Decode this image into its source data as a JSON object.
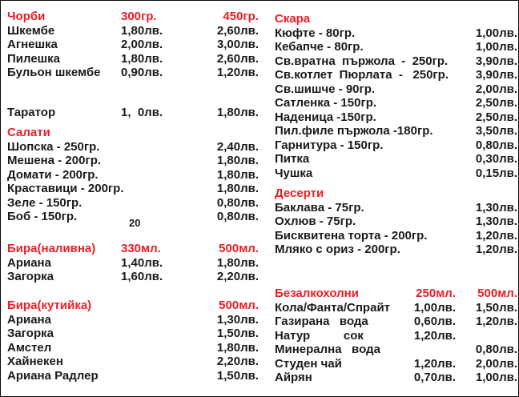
{
  "colors": {
    "accent": "#ee1c25",
    "text": "#1a1a1a",
    "background": "#ffffff"
  },
  "currency_suffix": "лв.",
  "menu": {
    "left": {
      "chorbi": {
        "title": "Чорби",
        "col1": "300гр.",
        "col2": "450гр.",
        "items": [
          {
            "name": "Шкембе",
            "p1": "1,80лв.",
            "p2": "2,60лв."
          },
          {
            "name": "Агнешка",
            "p1": "2,00лв.",
            "p2": "3,00лв."
          },
          {
            "name": "Пилешка",
            "p1": "1,80лв.",
            "p2": "2,60лв."
          },
          {
            "name": "Бульон шкембе",
            "p1": "0,90лв.",
            "p2": "1,20лв."
          }
        ]
      },
      "tarator": {
        "items": [
          {
            "name": "Таратор",
            "p1": "1,  0лв.",
            "p2": "1,80лв."
          }
        ]
      },
      "salati": {
        "title": "Салати",
        "items": [
          {
            "name": "Шопска - 250гр.",
            "p2": "2,40лв."
          },
          {
            "name": "Мешена - 200гр.",
            "p2": "1,80лв."
          },
          {
            "name": "Домати - 200гр.",
            "p2": "1,80лв."
          },
          {
            "name": "Краставици - 200гр.",
            "p2": "1,80лв."
          },
          {
            "name": "Зеле - 150гр.",
            "p2": "0,80лв."
          },
          {
            "name": "Боб - 150гр.",
            "p2": "0,80лв."
          }
        ]
      },
      "stray": "20",
      "bira_nalivna": {
        "title": "Бира(наливна)",
        "col1": "330мл.",
        "col2": "500мл.",
        "items": [
          {
            "name": "Ариана",
            "p1": "1,40лв.",
            "p2": "1,80лв."
          },
          {
            "name": "Загорка",
            "p1": "1,60лв.",
            "p2": "2,20лв."
          }
        ]
      },
      "bira_kutiika": {
        "title": "Бира(кутийка)",
        "col2": "500мл.",
        "items": [
          {
            "name": "Ариана",
            "p2": "1,30лв."
          },
          {
            "name": "Загорка",
            "p2": "1,50лв."
          },
          {
            "name": "Амстел",
            "p2": "1,80лв."
          },
          {
            "name": "Хайнекен",
            "p2": "2,20лв."
          },
          {
            "name": "Ариана Радлер",
            "p2": "1,50лв."
          }
        ]
      }
    },
    "right": {
      "skara": {
        "title": "Скара",
        "items": [
          {
            "name": "Кюфте - 80гр.",
            "p2": "1,00лв."
          },
          {
            "name": "Кебапче - 80гр.",
            "p2": "1,00лв."
          },
          {
            "name": "Св.вратна  пържола  -  250гр.",
            "p2": "3,90лв."
          },
          {
            "name": "Св.котлет  Пюрлата  -   250гр.",
            "p2": "3,90лв."
          },
          {
            "name": "Св.шишче - 90гр.",
            "p2": "2,00лв."
          },
          {
            "name": "Сатленка - 150гр.",
            "p2": "2,50лв."
          },
          {
            "name": "Наденица -150гр.",
            "p2": "2,50лв."
          },
          {
            "name": "Пил.филе пържола -180гр.",
            "p2": "3,50лв."
          },
          {
            "name": "Гарнитура - 150гр.",
            "p2": "0,80лв."
          },
          {
            "name": "Питка",
            "p2": "0,30лв."
          },
          {
            "name": "Чушка",
            "p2": "0,15лв."
          }
        ]
      },
      "deserti": {
        "title": "Десерти",
        "items": [
          {
            "name": "Баклава - 75гр.",
            "p2": "1,30лв."
          },
          {
            "name": "Охлюв - 75гр.",
            "p2": "1,30лв."
          },
          {
            "name": "Бисквитена торта - 200гр.",
            "p2": "1,20лв."
          },
          {
            "name": "Мляко с ориз - 200гр.",
            "p2": "1,20лв."
          }
        ]
      },
      "bezalkoholni": {
        "title": "Безалкохолни",
        "col1": "250мл.",
        "col2": "500мл.",
        "items": [
          {
            "name": "Кола/Фанта/Спрайт",
            "p1": "1,00лв.",
            "p2": "1,50лв."
          },
          {
            "name": "Газирана   вода",
            "p1": "0,60лв.",
            "p2": "1,20лв."
          },
          {
            "name": "Натур          сок",
            "p1": "1,20лв.",
            "p2": ""
          },
          {
            "name": "Минерална   вода",
            "p1": "",
            "p2": "0,80лв."
          },
          {
            "name": "Студен чай",
            "p1": "1,20лв.",
            "p2": "2,00лв."
          },
          {
            "name": "Айрян",
            "p1": "0,70лв.",
            "p2": "1,00лв."
          }
        ]
      }
    }
  }
}
